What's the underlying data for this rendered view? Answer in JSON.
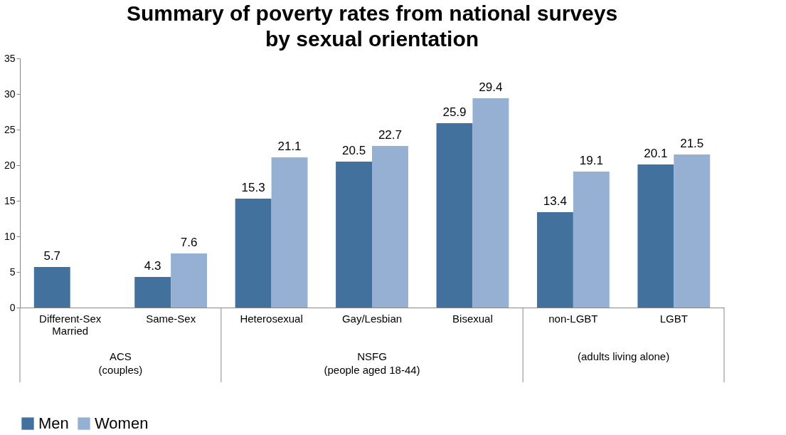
{
  "chart_data": {
    "type": "bar",
    "title": "Summary of poverty rates from national surveys\nby sexual orientation",
    "categories": [
      "Different-Sex Married",
      "Same-Sex",
      "Heterosexual",
      "Gay/Lesbian",
      "Bisexual",
      "non-LGBT",
      "LGBT"
    ],
    "series": [
      {
        "name": "Men",
        "color": "#41719c",
        "values": [
          5.7,
          4.3,
          15.3,
          20.5,
          25.9,
          13.4,
          20.1
        ]
      },
      {
        "name": "Women",
        "color": "#95b0d2",
        "values": [
          null,
          7.6,
          21.1,
          22.7,
          29.4,
          19.1,
          21.5
        ]
      }
    ],
    "ylim": [
      0,
      35
    ],
    "yticks": [
      0,
      5,
      10,
      15,
      20,
      25,
      30,
      35
    ],
    "grid": false,
    "legend": "bottom",
    "data_labels": true,
    "annotations": [
      "ACS\n(couples)",
      "NSFG\n(people aged 18-44)",
      "(adults living alone)"
    ]
  }
}
